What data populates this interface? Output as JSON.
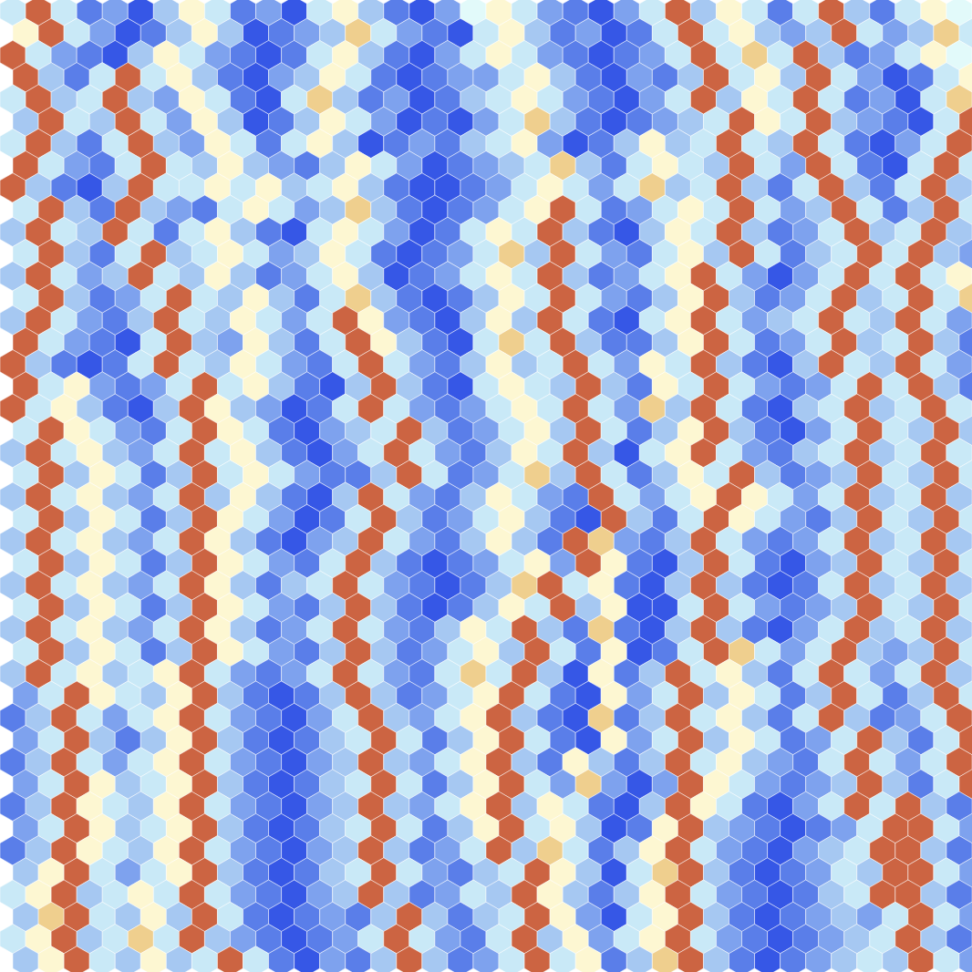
{
  "chart_data": {
    "type": "hexbin",
    "tick_labels": false,
    "grid": false,
    "xlim": [
      0,
      38
    ],
    "ylim": [
      0,
      44
    ],
    "color_range": [
      0,
      9
    ],
    "color_scale": [
      "#3657e6",
      "#5a7ee9",
      "#7ea2ee",
      "#a6c8f2",
      "#c9e9f7",
      "#e2fafa",
      "#fdf7d2",
      "#efcf8e",
      "#de9e63",
      "#cc6442"
    ],
    "cells": [
      [
        4,
        9,
        4,
        1,
        2,
        0,
        3,
        6,
        4,
        1,
        2,
        0,
        4,
        6,
        3,
        1,
        0,
        2,
        5,
        6,
        4,
        2,
        1,
        0,
        2,
        4,
        9,
        3,
        6,
        4,
        1,
        4,
        9,
        3,
        1,
        4,
        6,
        5
      ],
      [
        6,
        9,
        4,
        2,
        0,
        1,
        3,
        6,
        3,
        0,
        1,
        2,
        3,
        7,
        4,
        2,
        1,
        0,
        4,
        6,
        3,
        1,
        2,
        0,
        1,
        4,
        9,
        4,
        6,
        3,
        2,
        3,
        9,
        4,
        2,
        3,
        7,
        4
      ],
      [
        9,
        4,
        2,
        1,
        0,
        3,
        6,
        4,
        2,
        1,
        0,
        1,
        4,
        6,
        3,
        1,
        0,
        2,
        4,
        6,
        4,
        2,
        1,
        0,
        1,
        2,
        4,
        9,
        4,
        7,
        4,
        9,
        3,
        1,
        2,
        4,
        6,
        5
      ],
      [
        9,
        3,
        1,
        4,
        9,
        4,
        6,
        3,
        1,
        0,
        2,
        3,
        6,
        4,
        1,
        0,
        1,
        2,
        2,
        4,
        6,
        3,
        1,
        0,
        2,
        1,
        3,
        9,
        4,
        6,
        3,
        9,
        4,
        2,
        0,
        1,
        4,
        6
      ],
      [
        4,
        9,
        3,
        4,
        9,
        3,
        2,
        6,
        4,
        1,
        0,
        4,
        7,
        3,
        1,
        2,
        0,
        1,
        3,
        4,
        6,
        4,
        2,
        1,
        0,
        2,
        4,
        9,
        3,
        6,
        4,
        9,
        4,
        1,
        2,
        0,
        4,
        7
      ],
      [
        3,
        9,
        4,
        3,
        9,
        4,
        2,
        6,
        3,
        0,
        1,
        3,
        6,
        4,
        2,
        0,
        1,
        0,
        2,
        4,
        7,
        3,
        1,
        0,
        1,
        2,
        3,
        4,
        9,
        6,
        4,
        9,
        3,
        2,
        1,
        0,
        4,
        9
      ],
      [
        4,
        9,
        3,
        1,
        4,
        9,
        3,
        2,
        6,
        4,
        1,
        4,
        6,
        3,
        0,
        1,
        2,
        1,
        3,
        4,
        6,
        2,
        0,
        1,
        3,
        6,
        3,
        4,
        9,
        4,
        3,
        9,
        4,
        1,
        0,
        2,
        4,
        9
      ],
      [
        9,
        4,
        2,
        1,
        4,
        9,
        4,
        3,
        6,
        3,
        2,
        1,
        3,
        6,
        4,
        2,
        0,
        1,
        2,
        3,
        4,
        7,
        3,
        1,
        4,
        6,
        4,
        3,
        9,
        4,
        2,
        9,
        4,
        1,
        0,
        4,
        9,
        4
      ],
      [
        9,
        3,
        1,
        0,
        3,
        9,
        4,
        4,
        6,
        4,
        6,
        3,
        4,
        6,
        3,
        1,
        0,
        0,
        1,
        2,
        4,
        6,
        4,
        2,
        4,
        7,
        3,
        4,
        9,
        3,
        1,
        4,
        9,
        3,
        1,
        4,
        9,
        3
      ],
      [
        4,
        9,
        3,
        1,
        9,
        3,
        2,
        1,
        4,
        6,
        4,
        2,
        3,
        7,
        3,
        1,
        0,
        1,
        2,
        4,
        6,
        9,
        4,
        1,
        2,
        4,
        6,
        4,
        9,
        4,
        2,
        3,
        9,
        4,
        1,
        3,
        9,
        4
      ],
      [
        3,
        9,
        4,
        3,
        9,
        4,
        1,
        4,
        6,
        3,
        1,
        0,
        4,
        6,
        4,
        2,
        0,
        1,
        4,
        6,
        4,
        9,
        3,
        1,
        0,
        3,
        6,
        4,
        9,
        3,
        1,
        2,
        4,
        9,
        3,
        4,
        9,
        3
      ],
      [
        4,
        9,
        3,
        1,
        4,
        9,
        3,
        4,
        6,
        4,
        2,
        3,
        6,
        4,
        1,
        0,
        1,
        2,
        4,
        7,
        3,
        9,
        4,
        2,
        1,
        4,
        6,
        3,
        9,
        4,
        1,
        3,
        4,
        9,
        4,
        9,
        3,
        2
      ],
      [
        3,
        9,
        4,
        2,
        3,
        9,
        4,
        3,
        6,
        3,
        1,
        2,
        4,
        6,
        3,
        0,
        1,
        2,
        4,
        6,
        4,
        9,
        3,
        1,
        2,
        4,
        6,
        9,
        4,
        2,
        0,
        2,
        4,
        9,
        4,
        9,
        4,
        6
      ],
      [
        4,
        9,
        3,
        1,
        2,
        4,
        9,
        4,
        3,
        6,
        3,
        1,
        4,
        7,
        3,
        1,
        0,
        1,
        3,
        6,
        4,
        9,
        4,
        2,
        1,
        3,
        6,
        9,
        3,
        1,
        2,
        4,
        9,
        3,
        4,
        9,
        4,
        7
      ],
      [
        3,
        9,
        4,
        2,
        1,
        3,
        9,
        4,
        3,
        6,
        4,
        2,
        4,
        9,
        6,
        2,
        1,
        0,
        3,
        6,
        3,
        9,
        4,
        1,
        0,
        4,
        6,
        9,
        4,
        2,
        3,
        4,
        9,
        4,
        3,
        9,
        4,
        2
      ],
      [
        9,
        4,
        2,
        1,
        0,
        4,
        9,
        3,
        2,
        6,
        3,
        1,
        4,
        9,
        6,
        3,
        1,
        0,
        4,
        7,
        4,
        9,
        3,
        1,
        1,
        3,
        6,
        9,
        4,
        1,
        2,
        4,
        9,
        3,
        4,
        9,
        3,
        1
      ],
      [
        9,
        3,
        1,
        0,
        1,
        4,
        9,
        4,
        3,
        6,
        4,
        2,
        1,
        4,
        9,
        4,
        2,
        1,
        3,
        6,
        3,
        4,
        9,
        4,
        2,
        6,
        4,
        9,
        3,
        1,
        0,
        3,
        9,
        4,
        3,
        9,
        4,
        2
      ],
      [
        9,
        4,
        6,
        2,
        1,
        2,
        4,
        9,
        4,
        6,
        3,
        1,
        0,
        3,
        9,
        3,
        1,
        0,
        4,
        6,
        4,
        3,
        9,
        3,
        1,
        6,
        4,
        9,
        4,
        2,
        1,
        2,
        4,
        9,
        4,
        9,
        3,
        1
      ],
      [
        9,
        4,
        6,
        3,
        1,
        0,
        3,
        9,
        6,
        3,
        2,
        0,
        1,
        4,
        9,
        4,
        2,
        1,
        2,
        4,
        6,
        4,
        9,
        4,
        2,
        7,
        3,
        9,
        4,
        1,
        0,
        3,
        4,
        9,
        3,
        4,
        9,
        4
      ],
      [
        4,
        9,
        6,
        4,
        2,
        1,
        4,
        9,
        6,
        4,
        1,
        0,
        2,
        3,
        4,
        9,
        3,
        1,
        2,
        4,
        6,
        3,
        9,
        4,
        1,
        3,
        6,
        9,
        3,
        1,
        0,
        2,
        4,
        9,
        4,
        3,
        9,
        3
      ],
      [
        3,
        9,
        4,
        6,
        3,
        2,
        4,
        9,
        4,
        6,
        3,
        1,
        0,
        2,
        4,
        9,
        4,
        2,
        1,
        3,
        6,
        4,
        9,
        3,
        0,
        4,
        6,
        9,
        4,
        2,
        1,
        3,
        4,
        9,
        3,
        4,
        9,
        4
      ],
      [
        4,
        9,
        3,
        6,
        4,
        1,
        3,
        9,
        4,
        6,
        4,
        2,
        1,
        1,
        3,
        9,
        4,
        1,
        2,
        4,
        7,
        3,
        9,
        4,
        1,
        3,
        6,
        4,
        9,
        3,
        1,
        2,
        3,
        9,
        4,
        3,
        9,
        4
      ],
      [
        3,
        9,
        4,
        6,
        3,
        2,
        4,
        9,
        3,
        6,
        3,
        1,
        0,
        3,
        9,
        4,
        2,
        1,
        3,
        6,
        4,
        2,
        1,
        9,
        4,
        2,
        4,
        6,
        9,
        6,
        4,
        2,
        4,
        9,
        3,
        4,
        9,
        3
      ],
      [
        4,
        9,
        3,
        6,
        4,
        1,
        3,
        9,
        6,
        4,
        2,
        0,
        1,
        4,
        9,
        3,
        1,
        2,
        4,
        6,
        3,
        1,
        0,
        9,
        3,
        1,
        4,
        9,
        6,
        4,
        2,
        1,
        3,
        9,
        4,
        3,
        9,
        4
      ],
      [
        3,
        9,
        4,
        6,
        3,
        2,
        4,
        9,
        6,
        3,
        1,
        0,
        2,
        3,
        9,
        4,
        2,
        1,
        3,
        6,
        3,
        1,
        9,
        7,
        2,
        1,
        3,
        9,
        4,
        2,
        1,
        2,
        4,
        9,
        3,
        4,
        9,
        3
      ],
      [
        4,
        9,
        3,
        6,
        4,
        1,
        3,
        9,
        6,
        4,
        2,
        1,
        4,
        9,
        3,
        1,
        0,
        1,
        2,
        4,
        6,
        2,
        9,
        6,
        1,
        0,
        3,
        9,
        4,
        1,
        0,
        2,
        3,
        9,
        4,
        3,
        9,
        4
      ],
      [
        3,
        9,
        4,
        6,
        3,
        2,
        4,
        9,
        6,
        3,
        1,
        3,
        4,
        9,
        4,
        2,
        1,
        0,
        1,
        3,
        7,
        9,
        4,
        6,
        1,
        0,
        3,
        9,
        3,
        1,
        0,
        1,
        4,
        9,
        3,
        4,
        9,
        3
      ],
      [
        4,
        9,
        3,
        6,
        4,
        1,
        3,
        9,
        6,
        4,
        2,
        1,
        3,
        9,
        3,
        1,
        0,
        1,
        3,
        6,
        4,
        9,
        3,
        6,
        0,
        0,
        4,
        9,
        4,
        2,
        1,
        2,
        3,
        9,
        4,
        3,
        9,
        4
      ],
      [
        3,
        9,
        4,
        6,
        3,
        2,
        4,
        9,
        6,
        3,
        1,
        2,
        4,
        9,
        4,
        2,
        1,
        3,
        6,
        4,
        9,
        3,
        1,
        7,
        1,
        0,
        3,
        9,
        3,
        1,
        0,
        2,
        4,
        9,
        3,
        4,
        9,
        3
      ],
      [
        4,
        9,
        3,
        6,
        4,
        1,
        3,
        9,
        6,
        4,
        2,
        1,
        3,
        9,
        3,
        1,
        2,
        4,
        6,
        3,
        9,
        4,
        1,
        6,
        0,
        1,
        4,
        9,
        7,
        4,
        2,
        4,
        9,
        3,
        2,
        3,
        9,
        4
      ],
      [
        3,
        9,
        4,
        6,
        3,
        4,
        6,
        9,
        4,
        2,
        1,
        2,
        4,
        9,
        4,
        2,
        1,
        4,
        7,
        4,
        9,
        3,
        0,
        6,
        1,
        3,
        9,
        4,
        6,
        3,
        1,
        4,
        9,
        4,
        2,
        4,
        9,
        3
      ],
      [
        2,
        4,
        9,
        6,
        4,
        3,
        6,
        9,
        3,
        1,
        0,
        1,
        3,
        9,
        3,
        1,
        2,
        4,
        6,
        9,
        4,
        1,
        0,
        6,
        2,
        4,
        9,
        3,
        6,
        4,
        1,
        3,
        9,
        4,
        1,
        3,
        9,
        4
      ],
      [
        1,
        3,
        9,
        4,
        2,
        4,
        6,
        9,
        4,
        2,
        1,
        0,
        2,
        4,
        9,
        3,
        2,
        4,
        6,
        9,
        3,
        1,
        0,
        7,
        1,
        3,
        9,
        4,
        6,
        3,
        1,
        4,
        9,
        3,
        1,
        2,
        4,
        9
      ],
      [
        2,
        4,
        9,
        3,
        1,
        3,
        6,
        9,
        3,
        1,
        0,
        1,
        3,
        4,
        9,
        4,
        1,
        3,
        6,
        9,
        4,
        1,
        0,
        6,
        2,
        4,
        9,
        3,
        6,
        4,
        1,
        2,
        4,
        9,
        3,
        1,
        4,
        9
      ],
      [
        1,
        3,
        9,
        4,
        2,
        4,
        6,
        9,
        4,
        2,
        1,
        0,
        2,
        3,
        9,
        3,
        2,
        4,
        6,
        9,
        3,
        1,
        6,
        3,
        1,
        3,
        9,
        4,
        6,
        3,
        2,
        1,
        4,
        9,
        4,
        2,
        4,
        9
      ],
      [
        2,
        4,
        9,
        6,
        3,
        4,
        6,
        9,
        3,
        1,
        0,
        1,
        3,
        4,
        9,
        4,
        1,
        3,
        6,
        9,
        4,
        2,
        7,
        2,
        0,
        2,
        9,
        6,
        4,
        2,
        1,
        2,
        3,
        9,
        3,
        1,
        4,
        9
      ],
      [
        1,
        3,
        9,
        6,
        4,
        3,
        6,
        9,
        4,
        2,
        1,
        0,
        2,
        3,
        9,
        3,
        2,
        4,
        6,
        9,
        3,
        6,
        4,
        1,
        0,
        3,
        9,
        6,
        4,
        1,
        0,
        2,
        4,
        9,
        4,
        9,
        3,
        1
      ],
      [
        2,
        4,
        9,
        6,
        3,
        4,
        6,
        9,
        3,
        1,
        0,
        1,
        3,
        4,
        9,
        4,
        1,
        3,
        6,
        9,
        4,
        6,
        3,
        0,
        1,
        6,
        9,
        3,
        2,
        1,
        0,
        1,
        2,
        4,
        9,
        9,
        4,
        2
      ],
      [
        1,
        3,
        9,
        6,
        4,
        3,
        6,
        9,
        4,
        2,
        1,
        0,
        2,
        3,
        9,
        3,
        1,
        2,
        4,
        9,
        3,
        7,
        4,
        1,
        3,
        6,
        9,
        4,
        2,
        1,
        0,
        2,
        3,
        4,
        9,
        9,
        3,
        1
      ],
      [
        3,
        6,
        9,
        4,
        2,
        4,
        6,
        9,
        3,
        1,
        0,
        1,
        3,
        4,
        9,
        4,
        2,
        1,
        3,
        4,
        9,
        6,
        3,
        0,
        4,
        7,
        9,
        3,
        1,
        0,
        1,
        2,
        4,
        3,
        9,
        9,
        4,
        2
      ],
      [
        4,
        6,
        9,
        3,
        4,
        6,
        4,
        9,
        4,
        2,
        1,
        0,
        2,
        3,
        9,
        3,
        1,
        2,
        4,
        3,
        9,
        6,
        3,
        1,
        3,
        6,
        9,
        4,
        2,
        1,
        0,
        1,
        3,
        4,
        9,
        9,
        3,
        1
      ],
      [
        3,
        7,
        9,
        4,
        3,
        6,
        3,
        9,
        4,
        1,
        0,
        1,
        2,
        1,
        3,
        9,
        3,
        1,
        3,
        4,
        9,
        6,
        2,
        0,
        4,
        6,
        9,
        3,
        1,
        0,
        1,
        2,
        3,
        2,
        4,
        9,
        4,
        2
      ],
      [
        4,
        6,
        9,
        3,
        4,
        7,
        4,
        9,
        3,
        2,
        1,
        0,
        1,
        2,
        4,
        9,
        4,
        2,
        1,
        4,
        9,
        3,
        6,
        2,
        4,
        6,
        9,
        4,
        2,
        1,
        0,
        1,
        2,
        3,
        4,
        9,
        3,
        1
      ],
      [
        3,
        6,
        9,
        4,
        3,
        6,
        3,
        4,
        9,
        4,
        1,
        0,
        2,
        1,
        3,
        9,
        3,
        1,
        2,
        4,
        9,
        4,
        6,
        1,
        3,
        7,
        9,
        3,
        1,
        0,
        1,
        2,
        3,
        4,
        3,
        9,
        4,
        2
      ]
    ]
  }
}
